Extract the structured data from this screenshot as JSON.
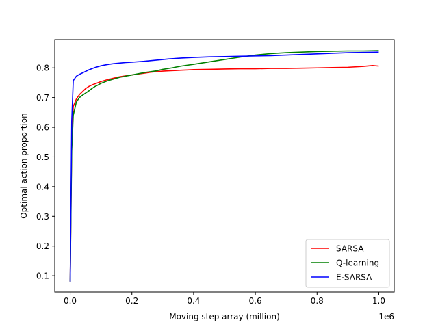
{
  "chart_data": {
    "type": "line",
    "title": "",
    "xlabel": "Moving step array (million)",
    "ylabel": "Optimal action proportion",
    "x_offset_label": "1e6",
    "xlim": [
      -50000,
      1050000
    ],
    "ylim": [
      0.045,
      0.895
    ],
    "x_ticks": [
      0,
      200000,
      400000,
      600000,
      800000,
      1000000
    ],
    "x_tick_labels": [
      "0.0",
      "0.2",
      "0.4",
      "0.6",
      "0.8",
      "1.0"
    ],
    "y_ticks": [
      0.1,
      0.2,
      0.3,
      0.4,
      0.5,
      0.6,
      0.7,
      0.8
    ],
    "y_tick_labels": [
      "0.1",
      "0.2",
      "0.3",
      "0.4",
      "0.5",
      "0.6",
      "0.7",
      "0.8"
    ],
    "grid": false,
    "legend_position": "bottom-right",
    "series": [
      {
        "name": "SARSA",
        "color": "#ff0000",
        "x": [
          0,
          5000,
          10000,
          20000,
          30000,
          40000,
          50000,
          60000,
          70000,
          80000,
          90000,
          100000,
          120000,
          140000,
          160000,
          180000,
          200000,
          220000,
          240000,
          260000,
          280000,
          300000,
          320000,
          340000,
          360000,
          380000,
          400000,
          450000,
          500000,
          550000,
          600000,
          650000,
          700000,
          750000,
          800000,
          850000,
          900000,
          950000,
          980000,
          1000000
        ],
        "y": [
          0.08,
          0.55,
          0.67,
          0.695,
          0.71,
          0.72,
          0.73,
          0.737,
          0.742,
          0.746,
          0.75,
          0.754,
          0.76,
          0.765,
          0.77,
          0.773,
          0.776,
          0.779,
          0.782,
          0.785,
          0.787,
          0.789,
          0.79,
          0.791,
          0.792,
          0.793,
          0.794,
          0.795,
          0.796,
          0.797,
          0.797,
          0.798,
          0.798,
          0.799,
          0.8,
          0.801,
          0.802,
          0.805,
          0.808,
          0.806
        ]
      },
      {
        "name": "Q-learning",
        "color": "#008000",
        "x": [
          0,
          5000,
          10000,
          20000,
          30000,
          40000,
          50000,
          60000,
          70000,
          80000,
          90000,
          100000,
          120000,
          140000,
          160000,
          180000,
          200000,
          220000,
          240000,
          260000,
          280000,
          300000,
          330000,
          360000,
          400000,
          450000,
          500000,
          550000,
          600000,
          650000,
          700000,
          750000,
          800000,
          850000,
          900000,
          950000,
          1000000
        ],
        "y": [
          0.08,
          0.52,
          0.64,
          0.685,
          0.7,
          0.708,
          0.715,
          0.722,
          0.73,
          0.737,
          0.742,
          0.748,
          0.756,
          0.762,
          0.768,
          0.772,
          0.776,
          0.78,
          0.784,
          0.787,
          0.79,
          0.795,
          0.8,
          0.806,
          0.812,
          0.82,
          0.828,
          0.836,
          0.843,
          0.848,
          0.851,
          0.853,
          0.855,
          0.856,
          0.857,
          0.857,
          0.858
        ]
      },
      {
        "name": "E-SARSA",
        "color": "#0000ff",
        "x": [
          0,
          5000,
          10000,
          20000,
          30000,
          40000,
          50000,
          60000,
          70000,
          80000,
          90000,
          100000,
          120000,
          140000,
          160000,
          180000,
          200000,
          240000,
          280000,
          320000,
          360000,
          400000,
          450000,
          500000,
          550000,
          600000,
          650000,
          700000,
          750000,
          800000,
          850000,
          900000,
          950000,
          1000000
        ],
        "y": [
          0.08,
          0.62,
          0.757,
          0.772,
          0.778,
          0.783,
          0.788,
          0.793,
          0.797,
          0.801,
          0.804,
          0.807,
          0.811,
          0.814,
          0.816,
          0.818,
          0.819,
          0.822,
          0.826,
          0.83,
          0.833,
          0.835,
          0.837,
          0.838,
          0.839,
          0.84,
          0.841,
          0.843,
          0.845,
          0.847,
          0.849,
          0.851,
          0.852,
          0.853
        ]
      }
    ]
  }
}
